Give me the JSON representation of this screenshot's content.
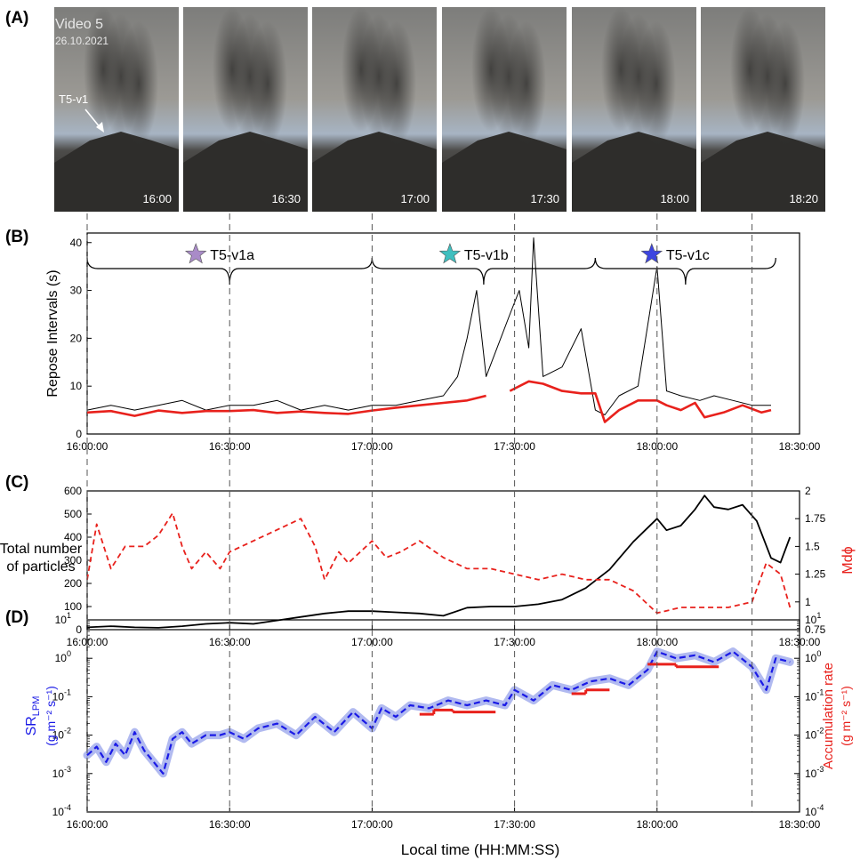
{
  "colors": {
    "red": "#e8211c",
    "blue": "#1a1ae6",
    "blue_band": "#a9b3ee",
    "purple_star": "#a98bc8",
    "teal_star": "#3fbfbf",
    "blue_star": "#3d45e0"
  },
  "panel_a": {
    "label": "(A)",
    "video_title": "Video 5",
    "video_date": "26.10.2021",
    "arrow_label": "T5-v1",
    "frames": [
      {
        "time": "16:00"
      },
      {
        "time": "16:30"
      },
      {
        "time": "17:00"
      },
      {
        "time": "17:30"
      },
      {
        "time": "18:00"
      },
      {
        "time": "18:20"
      }
    ]
  },
  "panel_b": {
    "label": "(B)"
  },
  "panel_c": {
    "label": "(C)"
  },
  "panel_d": {
    "label": "(D)"
  },
  "phases": [
    {
      "name": "T5-v1a",
      "star_color": "#a98bc8"
    },
    {
      "name": "T5-v1b",
      "star_color": "#3fbfbf"
    },
    {
      "name": "T5-v1c",
      "star_color": "#3d45e0"
    }
  ],
  "xlabel": "Local time (HH:MM:SS)",
  "chart_data": [
    {
      "id": "B",
      "type": "line",
      "ylabel": "Repose Intervals (s)",
      "xlim": [
        "16:00:00",
        "18:30:00"
      ],
      "xticks": [
        "16:00:00",
        "16:30:00",
        "17:00:00",
        "17:30:00",
        "18:00:00",
        "18:30:00"
      ],
      "ylim": [
        0,
        42
      ],
      "yticks": [
        "0",
        "10",
        "20",
        "30",
        "40"
      ],
      "phase_boundaries": [
        "16:00:00",
        "17:00:00",
        "17:47:00",
        "18:25:00"
      ],
      "series": [
        {
          "color": "#000000",
          "x": [
            "16:00",
            "16:05",
            "16:10",
            "16:15",
            "16:20",
            "16:25",
            "16:30",
            "16:35",
            "16:40",
            "16:45",
            "16:50",
            "16:55",
            "17:00",
            "17:05",
            "17:10",
            "17:15",
            "17:18",
            "17:20",
            "17:22",
            "17:24",
            "17:29",
            "17:31",
            "17:33",
            "17:34",
            "17:36",
            "17:40",
            "17:44",
            "17:47",
            "17:49",
            "17:52",
            "17:56",
            "18:00",
            "18:02",
            "18:05",
            "18:09",
            "18:12",
            "18:16",
            "18:20",
            "18:24"
          ],
          "y": [
            5,
            6,
            5,
            6,
            7,
            5,
            6,
            6,
            7,
            5,
            6,
            5,
            6,
            6,
            7,
            8,
            12,
            20,
            30,
            12,
            25,
            30,
            18,
            41,
            12,
            14,
            22,
            5,
            4,
            8,
            10,
            35,
            9,
            8,
            7,
            8,
            7,
            6,
            6
          ]
        },
        {
          "color": "#e8211c",
          "x": [
            "16:00",
            "16:05",
            "16:10",
            "16:15",
            "16:20",
            "16:25",
            "16:30",
            "16:35",
            "16:40",
            "16:45",
            "16:50",
            "16:55",
            "17:00",
            "17:05",
            "17:10",
            "17:15",
            "17:20",
            "17:24"
          ],
          "y": [
            4.5,
            4.8,
            3.8,
            4.9,
            4.4,
            4.8,
            4.8,
            5.0,
            4.4,
            4.7,
            4.4,
            4.2,
            4.9,
            5.5,
            6.0,
            6.5,
            7.0,
            8.0
          ]
        },
        {
          "color": "#e8211c",
          "x": [
            "17:29",
            "17:33",
            "17:36",
            "17:40",
            "17:44",
            "17:47",
            "17:49",
            "17:52",
            "17:56",
            "18:00",
            "18:02",
            "18:05",
            "18:08",
            "18:10",
            "18:14",
            "18:18",
            "18:22",
            "18:24"
          ],
          "y": [
            9.0,
            11.0,
            10.5,
            9.0,
            8.5,
            8.5,
            2.5,
            5.0,
            7.0,
            7.0,
            6.0,
            5.0,
            6.5,
            3.5,
            4.5,
            6.0,
            4.5,
            5.0
          ]
        }
      ]
    },
    {
      "id": "C",
      "type": "line",
      "ylabel": "Total number of particles",
      "ylabel_lines": [
        "Total number",
        "of particles"
      ],
      "y2label": "Mdϕ",
      "xlim": [
        "16:00:00",
        "18:30:00"
      ],
      "xticks": [
        "16:00:00",
        "16:30:00",
        "17:00:00",
        "17:30:00",
        "18:00:00",
        "18:30:00"
      ],
      "ylim": [
        0,
        600
      ],
      "yticks": [
        "0",
        "100",
        "200",
        "300",
        "400",
        "500",
        "600"
      ],
      "y2lim": [
        0.75,
        2
      ],
      "y2ticks": [
        "0.75",
        "1",
        "1.25",
        "1.5",
        "1.75",
        "2"
      ],
      "series": [
        {
          "axis": "left",
          "color": "#000000",
          "x": [
            "16:00",
            "16:05",
            "16:10",
            "16:15",
            "16:20",
            "16:25",
            "16:30",
            "16:35",
            "16:40",
            "16:45",
            "16:50",
            "16:55",
            "17:00",
            "17:05",
            "17:10",
            "17:15",
            "17:20",
            "17:25",
            "17:30",
            "17:35",
            "17:40",
            "17:45",
            "17:50",
            "17:55",
            "18:00",
            "18:02",
            "18:05",
            "18:08",
            "18:10",
            "18:12",
            "18:15",
            "18:18",
            "18:21",
            "18:24",
            "18:26",
            "18:28"
          ],
          "y": [
            10,
            15,
            10,
            8,
            15,
            25,
            30,
            25,
            40,
            55,
            70,
            80,
            80,
            75,
            70,
            60,
            95,
            100,
            100,
            110,
            130,
            180,
            260,
            380,
            480,
            430,
            450,
            520,
            580,
            530,
            520,
            540,
            470,
            310,
            290,
            400
          ]
        },
        {
          "axis": "right",
          "color": "#e8211c",
          "dash": true,
          "x": [
            "16:00",
            "16:02",
            "16:05",
            "16:08",
            "16:12",
            "16:15",
            "16:18",
            "16:20",
            "16:22",
            "16:25",
            "16:28",
            "16:30",
            "16:35",
            "16:40",
            "16:45",
            "16:48",
            "16:50",
            "16:53",
            "16:55",
            "17:00",
            "17:03",
            "17:06",
            "17:10",
            "17:15",
            "17:20",
            "17:25",
            "17:30",
            "17:35",
            "17:40",
            "17:45",
            "17:50",
            "17:55",
            "18:00",
            "18:05",
            "18:10",
            "18:15",
            "18:20",
            "18:23",
            "18:26",
            "18:28"
          ],
          "y": [
            1.2,
            1.7,
            1.3,
            1.5,
            1.5,
            1.6,
            1.8,
            1.5,
            1.3,
            1.45,
            1.3,
            1.45,
            1.55,
            1.65,
            1.75,
            1.5,
            1.2,
            1.45,
            1.35,
            1.55,
            1.4,
            1.45,
            1.55,
            1.4,
            1.3,
            1.3,
            1.25,
            1.2,
            1.25,
            1.2,
            1.2,
            1.1,
            0.9,
            0.95,
            0.95,
            0.95,
            1.0,
            1.35,
            1.25,
            0.95
          ]
        }
      ]
    },
    {
      "id": "D",
      "type": "line",
      "ylabel": "SR_LPM (g m⁻² s⁻¹)",
      "ylabel_main": "SR",
      "ylabel_sub": "LPM",
      "ylabel_units": "(g m⁻² s⁻¹)",
      "y2label": "Accumulation rate (g m⁻² s⁻¹)",
      "y2label_units": "(g m⁻² s⁻¹)",
      "yscale": "log",
      "xlim": [
        "16:00:00",
        "18:30:00"
      ],
      "xticks": [
        "16:00:00",
        "16:30:00",
        "17:00:00",
        "17:30:00",
        "18:00:00",
        "18:30:00"
      ],
      "ylim": [
        0.0001,
        10
      ],
      "ytick_exps": [
        "-4",
        "-3",
        "-2",
        "-1",
        "0",
        "1"
      ],
      "series": [
        {
          "axis": "left",
          "color": "#1a1ae6",
          "dash": true,
          "band_color": "#a9b3ee",
          "x": [
            "16:00",
            "16:02",
            "16:04",
            "16:06",
            "16:08",
            "16:10",
            "16:12",
            "16:14",
            "16:16",
            "16:18",
            "16:20",
            "16:22",
            "16:25",
            "16:28",
            "16:30",
            "16:33",
            "16:36",
            "16:40",
            "16:44",
            "16:48",
            "16:52",
            "16:56",
            "17:00",
            "17:02",
            "17:05",
            "17:08",
            "17:12",
            "17:16",
            "17:20",
            "17:24",
            "17:28",
            "17:30",
            "17:34",
            "17:38",
            "17:42",
            "17:46",
            "17:50",
            "17:54",
            "17:58",
            "18:00",
            "18:04",
            "18:08",
            "18:12",
            "18:16",
            "18:20",
            "18:23",
            "18:25",
            "18:28"
          ],
          "y": [
            0.003,
            0.005,
            0.002,
            0.006,
            0.003,
            0.012,
            0.004,
            0.002,
            0.001,
            0.008,
            0.012,
            0.006,
            0.01,
            0.01,
            0.012,
            0.008,
            0.015,
            0.02,
            0.01,
            0.03,
            0.012,
            0.04,
            0.015,
            0.05,
            0.03,
            0.06,
            0.05,
            0.08,
            0.06,
            0.08,
            0.06,
            0.15,
            0.08,
            0.2,
            0.15,
            0.25,
            0.3,
            0.2,
            0.5,
            1.5,
            1.0,
            1.2,
            0.8,
            1.5,
            0.6,
            0.15,
            1.0,
            0.8
          ]
        },
        {
          "axis": "right",
          "color": "#e8211c",
          "type": "step",
          "segments": [
            {
              "x": [
                "17:10",
                "17:13"
              ],
              "y": 0.035
            },
            {
              "x": [
                "17:13",
                "17:17"
              ],
              "y": 0.045
            },
            {
              "x": [
                "17:17",
                "17:26"
              ],
              "y": 0.04
            },
            {
              "x": [
                "17:42",
                "17:45"
              ],
              "y": 0.12
            },
            {
              "x": [
                "17:45",
                "17:50"
              ],
              "y": 0.15
            },
            {
              "x": [
                "17:58",
                "18:04"
              ],
              "y": 0.7
            },
            {
              "x": [
                "18:04",
                "18:13"
              ],
              "y": 0.6
            }
          ]
        }
      ]
    }
  ]
}
